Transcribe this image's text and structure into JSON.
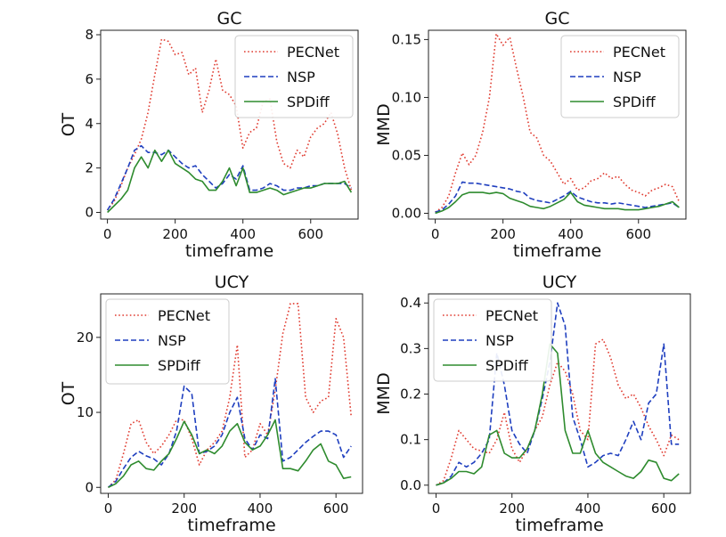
{
  "chart_data": [
    {
      "type": "line",
      "title": "GC",
      "xlabel": "timeframe",
      "ylabel": "OT",
      "xlim": [
        -20,
        740
      ],
      "ylim": [
        -0.3,
        8.2
      ],
      "xticks": [
        0,
        200,
        400,
        600
      ],
      "yticks": [
        0,
        2,
        4,
        6,
        8
      ],
      "ytick_labels": [
        "0",
        "2",
        "4",
        "6",
        "8"
      ],
      "grid": false,
      "legend": "top-right",
      "series": [
        {
          "name": "PECNet",
          "color": "#e03c31",
          "style": "dotted",
          "x": [
            0,
            20,
            40,
            60,
            80,
            100,
            120,
            140,
            160,
            180,
            200,
            220,
            240,
            260,
            280,
            300,
            320,
            340,
            360,
            380,
            400,
            420,
            440,
            460,
            480,
            500,
            520,
            540,
            560,
            580,
            600,
            620,
            640,
            660,
            680,
            700,
            720
          ],
          "y": [
            0.1,
            0.5,
            1.2,
            2.0,
            2.6,
            3.3,
            4.5,
            6.2,
            7.8,
            7.7,
            7.1,
            7.2,
            6.2,
            6.5,
            4.5,
            5.5,
            6.9,
            5.5,
            5.3,
            4.8,
            2.9,
            3.6,
            3.8,
            5.0,
            5.1,
            3.2,
            2.2,
            2.0,
            2.8,
            2.5,
            3.4,
            3.8,
            4.0,
            4.5,
            3.5,
            2.0,
            1.0
          ]
        },
        {
          "name": "NSP",
          "color": "#1f3fbf",
          "style": "dashed",
          "x": [
            0,
            20,
            40,
            60,
            80,
            100,
            120,
            140,
            160,
            180,
            200,
            220,
            240,
            260,
            280,
            300,
            320,
            340,
            360,
            380,
            400,
            420,
            440,
            460,
            480,
            500,
            520,
            540,
            560,
            580,
            600,
            620,
            640,
            660,
            680,
            700,
            720
          ],
          "y": [
            0.1,
            0.6,
            1.3,
            2.0,
            2.8,
            3.0,
            2.7,
            2.7,
            2.6,
            2.8,
            2.5,
            2.2,
            2.0,
            2.1,
            1.7,
            1.4,
            1.1,
            1.3,
            1.7,
            1.5,
            2.1,
            1.0,
            1.0,
            1.1,
            1.3,
            1.2,
            1.0,
            1.0,
            1.1,
            1.1,
            1.2,
            1.2,
            1.3,
            1.3,
            1.3,
            1.3,
            1.1
          ]
        },
        {
          "name": "SPDiff",
          "color": "#2e8b2e",
          "style": "solid",
          "x": [
            0,
            20,
            40,
            60,
            80,
            100,
            120,
            140,
            160,
            180,
            200,
            220,
            240,
            260,
            280,
            300,
            320,
            340,
            360,
            380,
            400,
            420,
            440,
            460,
            480,
            500,
            520,
            540,
            560,
            580,
            600,
            620,
            640,
            660,
            680,
            700,
            720
          ],
          "y": [
            0.0,
            0.3,
            0.6,
            1.0,
            2.0,
            2.5,
            2.0,
            2.8,
            2.3,
            2.8,
            2.2,
            2.0,
            1.8,
            1.5,
            1.4,
            1.0,
            1.0,
            1.4,
            2.0,
            1.2,
            2.0,
            0.9,
            0.9,
            1.0,
            1.1,
            1.0,
            0.8,
            0.9,
            1.0,
            1.1,
            1.1,
            1.2,
            1.3,
            1.3,
            1.3,
            1.4,
            0.9
          ]
        }
      ]
    },
    {
      "type": "line",
      "title": "GC",
      "xlabel": "timeframe",
      "ylabel": "MMD",
      "xlim": [
        -20,
        740
      ],
      "ylim": [
        -0.005,
        0.158
      ],
      "xticks": [
        0,
        200,
        400,
        600
      ],
      "yticks": [
        0,
        0.05,
        0.1,
        0.15
      ],
      "ytick_labels": [
        "0.00",
        "0.05",
        "0.10",
        "0.15"
      ],
      "grid": false,
      "legend": "top-right",
      "series": [
        {
          "name": "PECNet",
          "color": "#e03c31",
          "style": "dotted",
          "x": [
            0,
            20,
            40,
            60,
            80,
            100,
            120,
            140,
            160,
            180,
            200,
            220,
            240,
            260,
            280,
            300,
            320,
            340,
            360,
            380,
            400,
            420,
            440,
            460,
            480,
            500,
            520,
            540,
            560,
            580,
            600,
            620,
            640,
            660,
            680,
            700,
            720
          ],
          "y": [
            0.001,
            0.005,
            0.015,
            0.035,
            0.052,
            0.042,
            0.05,
            0.07,
            0.1,
            0.155,
            0.145,
            0.152,
            0.125,
            0.1,
            0.07,
            0.065,
            0.05,
            0.045,
            0.035,
            0.025,
            0.03,
            0.02,
            0.022,
            0.028,
            0.03,
            0.035,
            0.03,
            0.032,
            0.025,
            0.02,
            0.018,
            0.015,
            0.02,
            0.022,
            0.025,
            0.023,
            0.01
          ]
        },
        {
          "name": "NSP",
          "color": "#1f3fbf",
          "style": "dashed",
          "x": [
            0,
            20,
            40,
            60,
            80,
            100,
            120,
            140,
            160,
            180,
            200,
            220,
            240,
            260,
            280,
            300,
            320,
            340,
            360,
            380,
            400,
            420,
            440,
            460,
            480,
            500,
            520,
            540,
            560,
            580,
            600,
            620,
            640,
            660,
            680,
            700,
            720
          ],
          "y": [
            0.001,
            0.003,
            0.008,
            0.015,
            0.027,
            0.026,
            0.026,
            0.025,
            0.024,
            0.023,
            0.022,
            0.021,
            0.019,
            0.018,
            0.013,
            0.011,
            0.01,
            0.009,
            0.012,
            0.015,
            0.019,
            0.014,
            0.012,
            0.01,
            0.009,
            0.009,
            0.008,
            0.009,
            0.008,
            0.007,
            0.006,
            0.005,
            0.006,
            0.007,
            0.008,
            0.009,
            0.005
          ]
        },
        {
          "name": "SPDiff",
          "color": "#2e8b2e",
          "style": "solid",
          "x": [
            0,
            20,
            40,
            60,
            80,
            100,
            120,
            140,
            160,
            180,
            200,
            220,
            240,
            260,
            280,
            300,
            320,
            340,
            360,
            380,
            400,
            420,
            440,
            460,
            480,
            500,
            520,
            540,
            560,
            580,
            600,
            620,
            640,
            660,
            680,
            700,
            720
          ],
          "y": [
            0.0,
            0.002,
            0.005,
            0.01,
            0.016,
            0.018,
            0.018,
            0.018,
            0.017,
            0.018,
            0.017,
            0.013,
            0.011,
            0.009,
            0.006,
            0.005,
            0.004,
            0.006,
            0.009,
            0.012,
            0.018,
            0.01,
            0.007,
            0.006,
            0.005,
            0.004,
            0.004,
            0.004,
            0.003,
            0.003,
            0.003,
            0.004,
            0.005,
            0.006,
            0.008,
            0.01,
            0.005
          ]
        }
      ]
    },
    {
      "type": "line",
      "title": "UCY",
      "xlabel": "timeframe",
      "ylabel": "OT",
      "xlim": [
        -20,
        670
      ],
      "ylim": [
        -0.8,
        25.8
      ],
      "xticks": [
        0,
        200,
        400,
        600
      ],
      "yticks": [
        0,
        10,
        20
      ],
      "ytick_labels": [
        "0",
        "10",
        "20"
      ],
      "grid": false,
      "legend": "top-left",
      "series": [
        {
          "name": "PECNet",
          "color": "#e03c31",
          "style": "dotted",
          "x": [
            0,
            20,
            40,
            60,
            80,
            100,
            120,
            140,
            160,
            180,
            200,
            220,
            240,
            260,
            280,
            300,
            320,
            340,
            360,
            380,
            400,
            420,
            440,
            460,
            480,
            500,
            520,
            540,
            560,
            580,
            600,
            620,
            640
          ],
          "y": [
            0.0,
            1.0,
            4.5,
            8.5,
            9.0,
            6.0,
            4.5,
            5.5,
            7.0,
            9.0,
            9.0,
            6.5,
            3.0,
            5.0,
            6.0,
            7.5,
            12.0,
            19.0,
            4.0,
            5.0,
            8.5,
            7.0,
            13.0,
            20.5,
            24.5,
            24.5,
            12.0,
            10.0,
            11.5,
            12.0,
            22.5,
            20.0,
            9.5
          ]
        },
        {
          "name": "NSP",
          "color": "#1f3fbf",
          "style": "dashed",
          "x": [
            0,
            20,
            40,
            60,
            80,
            100,
            120,
            140,
            160,
            180,
            200,
            220,
            240,
            260,
            280,
            300,
            320,
            340,
            360,
            380,
            400,
            420,
            440,
            460,
            480,
            500,
            520,
            540,
            560,
            580,
            600,
            620,
            640
          ],
          "y": [
            0.0,
            0.8,
            2.5,
            4.0,
            4.8,
            4.2,
            3.8,
            3.0,
            4.5,
            7.5,
            13.5,
            12.5,
            4.5,
            4.8,
            5.5,
            7.0,
            10.0,
            12.0,
            6.5,
            5.0,
            7.0,
            6.5,
            14.5,
            3.5,
            4.0,
            5.0,
            6.0,
            6.8,
            7.5,
            7.5,
            7.0,
            4.0,
            5.5
          ]
        },
        {
          "name": "SPDiff",
          "color": "#2e8b2e",
          "style": "solid",
          "x": [
            0,
            20,
            40,
            60,
            80,
            100,
            120,
            140,
            160,
            180,
            200,
            220,
            240,
            260,
            280,
            300,
            320,
            340,
            360,
            380,
            400,
            420,
            440,
            460,
            480,
            500,
            520,
            540,
            560,
            580,
            600,
            620,
            640
          ],
          "y": [
            0.0,
            0.5,
            1.5,
            3.0,
            3.5,
            2.5,
            2.3,
            3.5,
            4.5,
            6.5,
            8.8,
            7.0,
            4.5,
            5.0,
            4.5,
            5.5,
            7.5,
            8.5,
            6.0,
            5.0,
            5.5,
            7.0,
            9.0,
            2.5,
            2.5,
            2.2,
            3.5,
            5.0,
            5.8,
            3.5,
            3.0,
            1.2,
            1.4
          ]
        }
      ]
    },
    {
      "type": "line",
      "title": "UCY",
      "xlabel": "timeframe",
      "ylabel": "MMD",
      "xlim": [
        -20,
        670
      ],
      "ylim": [
        -0.018,
        0.42
      ],
      "xticks": [
        0,
        200,
        400,
        600
      ],
      "yticks": [
        0,
        0.1,
        0.2,
        0.3,
        0.4
      ],
      "ytick_labels": [
        "0.0",
        "0.1",
        "0.2",
        "0.3",
        "0.4"
      ],
      "grid": false,
      "legend": "top-left",
      "series": [
        {
          "name": "PECNet",
          "color": "#e03c31",
          "style": "dotted",
          "x": [
            0,
            20,
            40,
            60,
            80,
            100,
            120,
            140,
            160,
            180,
            200,
            220,
            240,
            260,
            280,
            300,
            320,
            340,
            360,
            380,
            400,
            420,
            440,
            460,
            480,
            500,
            520,
            540,
            560,
            580,
            600,
            620,
            640
          ],
          "y": [
            0.0,
            0.01,
            0.06,
            0.12,
            0.1,
            0.08,
            0.075,
            0.07,
            0.1,
            0.16,
            0.08,
            0.05,
            0.08,
            0.12,
            0.15,
            0.22,
            0.27,
            0.25,
            0.2,
            0.12,
            0.1,
            0.31,
            0.32,
            0.28,
            0.22,
            0.19,
            0.2,
            0.17,
            0.13,
            0.1,
            0.065,
            0.11,
            0.1
          ]
        },
        {
          "name": "NSP",
          "color": "#1f3fbf",
          "style": "dashed",
          "x": [
            0,
            20,
            40,
            60,
            80,
            100,
            120,
            140,
            160,
            180,
            200,
            220,
            240,
            260,
            280,
            300,
            320,
            340,
            360,
            380,
            400,
            420,
            440,
            460,
            480,
            500,
            520,
            540,
            560,
            580,
            600,
            620,
            640
          ],
          "y": [
            0.0,
            0.005,
            0.02,
            0.05,
            0.04,
            0.05,
            0.07,
            0.1,
            0.29,
            0.22,
            0.12,
            0.09,
            0.07,
            0.12,
            0.19,
            0.27,
            0.4,
            0.35,
            0.15,
            0.1,
            0.04,
            0.05,
            0.065,
            0.07,
            0.065,
            0.1,
            0.14,
            0.1,
            0.18,
            0.2,
            0.31,
            0.09,
            0.09
          ]
        },
        {
          "name": "SPDiff",
          "color": "#2e8b2e",
          "style": "solid",
          "x": [
            0,
            20,
            40,
            60,
            80,
            100,
            120,
            140,
            160,
            180,
            200,
            220,
            240,
            260,
            280,
            300,
            320,
            340,
            360,
            380,
            400,
            420,
            440,
            460,
            480,
            500,
            520,
            540,
            560,
            580,
            600,
            620,
            640
          ],
          "y": [
            0.0,
            0.005,
            0.015,
            0.03,
            0.03,
            0.025,
            0.04,
            0.11,
            0.12,
            0.07,
            0.06,
            0.06,
            0.08,
            0.12,
            0.2,
            0.31,
            0.29,
            0.12,
            0.07,
            0.07,
            0.12,
            0.07,
            0.05,
            0.04,
            0.03,
            0.02,
            0.015,
            0.03,
            0.055,
            0.05,
            0.015,
            0.01,
            0.025
          ]
        }
      ]
    }
  ]
}
